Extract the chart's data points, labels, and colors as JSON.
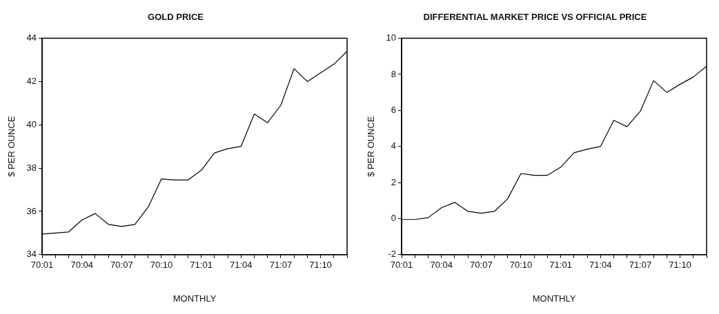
{
  "chart_data": [
    {
      "type": "line",
      "title": "GOLD PRICE",
      "xlabel": "MONTHLY",
      "ylabel": "$ PER OUNCE",
      "categories": [
        "70:01",
        null,
        null,
        "70:04",
        null,
        null,
        "70:07",
        null,
        null,
        "70:10",
        null,
        null,
        "71:01",
        null,
        null,
        "71:04",
        null,
        null,
        "71:07",
        null,
        null,
        "71:10",
        null,
        null
      ],
      "series": [
        {
          "color": "#000000",
          "values": [
            34.95,
            35.0,
            35.05,
            35.6,
            35.9,
            35.4,
            35.3,
            35.4,
            36.2,
            37.5,
            37.45,
            37.45,
            37.9,
            38.7,
            38.9,
            39.0,
            40.5,
            40.1,
            40.9,
            42.6,
            42.0,
            42.4,
            42.8,
            43.4
          ]
        }
      ],
      "ylim": [
        34,
        44
      ],
      "yticks": [
        34,
        36,
        38,
        40,
        42,
        44
      ],
      "grid": false,
      "legend": false,
      "marker": "none",
      "line_style": "solid"
    },
    {
      "type": "line",
      "title": "DIFFERENTIAL MARKET PRICE VS OFFICIAL PRICE",
      "xlabel": "MONTHLY",
      "ylabel": "$ PER OUNCE",
      "categories": [
        "70:01",
        null,
        null,
        "70:04",
        null,
        null,
        "70:07",
        null,
        null,
        "70:10",
        null,
        null,
        "71:01",
        null,
        null,
        "71:04",
        null,
        null,
        "71:07",
        null,
        null,
        "71:10",
        null,
        null
      ],
      "series": [
        {
          "color": "#000000",
          "values": [
            -0.05,
            -0.05,
            0.05,
            0.6,
            0.9,
            0.4,
            0.3,
            0.4,
            1.1,
            2.5,
            2.4,
            2.4,
            2.85,
            3.65,
            3.85,
            4.0,
            5.45,
            5.1,
            5.95,
            7.65,
            7.0,
            7.45,
            7.85,
            8.45
          ]
        }
      ],
      "ylim": [
        -2,
        10
      ],
      "yticks": [
        -2,
        0,
        2,
        4,
        6,
        8,
        10
      ],
      "grid": false,
      "legend": false,
      "marker": "none",
      "line_style": "solid"
    }
  ]
}
